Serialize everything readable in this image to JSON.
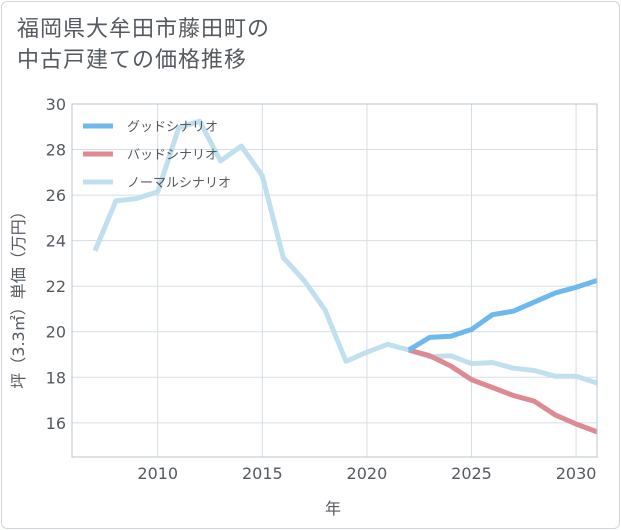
{
  "title": {
    "line1": "福岡県大牟田市藤田町の",
    "line2": "中古戸建ての価格推移"
  },
  "chart_data": {
    "type": "line",
    "xlabel": "年",
    "ylabel": "坪（3.3㎡）単価（万円）",
    "xlim": [
      2005.9,
      2031
    ],
    "ylim": [
      14.5,
      30
    ],
    "x_ticks": [
      2010,
      2015,
      2020,
      2025,
      2030
    ],
    "y_ticks": [
      16,
      18,
      20,
      22,
      24,
      26,
      28,
      30
    ],
    "grid": true,
    "legend_position": "top-left",
    "series": [
      {
        "name": "グッドシナリオ",
        "color": "#6db9ee",
        "x": [
          2022,
          2023,
          2024,
          2025,
          2026,
          2027,
          2028,
          2029,
          2030,
          2031
        ],
        "y": [
          19.2,
          19.75,
          19.8,
          20.1,
          20.75,
          20.9,
          21.3,
          21.7,
          21.95,
          22.25
        ]
      },
      {
        "name": "バッドシナリオ",
        "color": "#dd8a93",
        "x": [
          2022,
          2023,
          2024,
          2025,
          2026,
          2027,
          2028,
          2029,
          2030,
          2031
        ],
        "y": [
          19.2,
          18.95,
          18.5,
          17.9,
          17.55,
          17.2,
          16.95,
          16.35,
          15.95,
          15.6
        ]
      },
      {
        "name": "ノーマルシナリオ",
        "color": "#c0e0f0",
        "x": [
          2007,
          2008,
          2009,
          2010,
          2011,
          2012,
          2013,
          2014,
          2015,
          2016,
          2017,
          2018,
          2019,
          2020,
          2021,
          2022,
          2023,
          2024,
          2025,
          2026,
          2027,
          2028,
          2029,
          2030,
          2031
        ],
        "y": [
          23.55,
          25.75,
          25.85,
          26.15,
          28.95,
          29.25,
          27.5,
          28.15,
          26.85,
          23.25,
          22.25,
          20.95,
          18.7,
          19.1,
          19.45,
          19.2,
          18.9,
          18.95,
          18.6,
          18.65,
          18.4,
          18.3,
          18.05,
          18.05,
          17.75
        ]
      }
    ]
  }
}
